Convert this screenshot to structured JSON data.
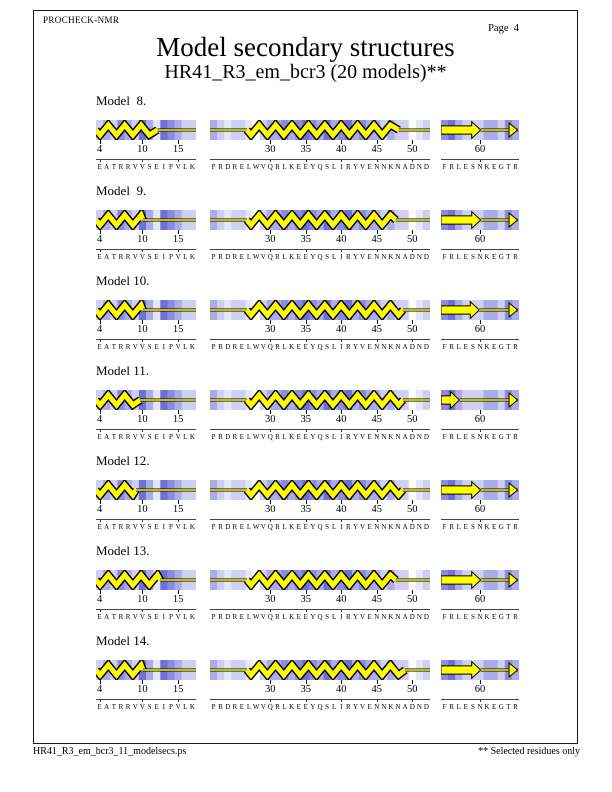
{
  "header": {
    "app": "PROCHECK-NMR",
    "page": "Page  4"
  },
  "title": "Model secondary structures",
  "subtitle": "HR41_R3_em_bcr3 (20 models)**",
  "footer": {
    "left": "HR41_R3_em_bcr3_11_modelsecs.ps",
    "right": "** Selected residues only"
  },
  "palette": {
    "helix_fill": "#ffff00",
    "outline": "#000000",
    "shades": [
      "#ffffff",
      "#e6e6fa",
      "#cfcff3",
      "#ababea",
      "#8b8be0",
      "#6f6fd6"
    ]
  },
  "chart_data": {
    "type": "secondary-structure-models",
    "xlabel": "residue number",
    "segments": [
      {
        "start": 4,
        "end": 18,
        "sequence": "EATRRVVSEIPVLK",
        "ticks": [
          4,
          10,
          15
        ],
        "shades": [
          2,
          3,
          2,
          4,
          3,
          2,
          5,
          3,
          1,
          5,
          4,
          3,
          2,
          2
        ]
      },
      {
        "start": 22,
        "end": 53,
        "sequence": "PRDRELWVQRLKEEYQSLIRYVENNKNADND",
        "ticks": [
          30,
          35,
          40,
          45,
          50
        ],
        "shades": [
          3,
          2,
          1,
          2,
          2,
          1,
          0,
          2,
          3,
          3,
          4,
          3,
          4,
          5,
          4,
          3,
          5,
          3,
          4,
          5,
          3,
          4,
          3,
          3,
          2,
          3,
          2,
          2,
          0,
          1,
          2
        ]
      },
      {
        "start": 55,
        "end": 66,
        "sequence": "FRLESNKEGTR",
        "ticks": [
          60
        ],
        "shades": [
          4,
          5,
          3,
          2,
          2,
          2,
          3,
          3,
          2,
          4,
          3
        ]
      }
    ],
    "models": [
      {
        "label": "Model  8.",
        "elements": [
          [
            {
              "type": "helix",
              "from": 4,
              "to": 12.6
            },
            {
              "type": "coil",
              "from": 12.6,
              "to": 18
            }
          ],
          [
            {
              "type": "coil",
              "from": 22,
              "to": 27.2
            },
            {
              "type": "helix",
              "from": 27.2,
              "to": 48.6
            },
            {
              "type": "coil",
              "from": 48.6,
              "to": 53
            }
          ],
          [
            {
              "type": "strand",
              "from": 55,
              "to": 60.6
            },
            {
              "type": "coil",
              "from": 60.6,
              "to": 65.8
            },
            {
              "type": "term-arrow",
              "at": 65.8
            }
          ]
        ]
      },
      {
        "label": "Model  9.",
        "elements": [
          [
            {
              "type": "helix",
              "from": 4,
              "to": 10.6
            },
            {
              "type": "coil",
              "from": 10.6,
              "to": 18
            }
          ],
          [
            {
              "type": "coil",
              "from": 22,
              "to": 27.2
            },
            {
              "type": "helix",
              "from": 27.2,
              "to": 48.2
            },
            {
              "type": "coil",
              "from": 48.2,
              "to": 53
            }
          ],
          [
            {
              "type": "strand",
              "from": 55,
              "to": 60.6
            },
            {
              "type": "coil",
              "from": 60.6,
              "to": 65.8
            },
            {
              "type": "term-arrow",
              "at": 65.8
            }
          ]
        ]
      },
      {
        "label": "Model 10.",
        "elements": [
          [
            {
              "type": "helix",
              "from": 4,
              "to": 10.6
            },
            {
              "type": "coil",
              "from": 10.6,
              "to": 18
            }
          ],
          [
            {
              "type": "coil",
              "from": 22,
              "to": 27.2
            },
            {
              "type": "helix",
              "from": 27.2,
              "to": 49.2
            },
            {
              "type": "coil",
              "from": 49.2,
              "to": 53
            }
          ],
          [
            {
              "type": "strand",
              "from": 55,
              "to": 60.4
            },
            {
              "type": "coil",
              "from": 60.4,
              "to": 65.8
            },
            {
              "type": "term-arrow",
              "at": 65.8
            }
          ]
        ]
      },
      {
        "label": "Model 11.",
        "elements": [
          [
            {
              "type": "helix",
              "from": 4,
              "to": 10.2
            },
            {
              "type": "coil",
              "from": 10.2,
              "to": 18
            }
          ],
          [
            {
              "type": "coil",
              "from": 22,
              "to": 27.2
            },
            {
              "type": "helix",
              "from": 27.2,
              "to": 49.2
            },
            {
              "type": "coil",
              "from": 49.2,
              "to": 53
            }
          ],
          [
            {
              "type": "strand",
              "from": 55,
              "to": 57.6
            },
            {
              "type": "coil",
              "from": 57.6,
              "to": 65.8
            },
            {
              "type": "term-arrow",
              "at": 65.8
            }
          ]
        ]
      },
      {
        "label": "Model 12.",
        "elements": [
          [
            {
              "type": "helix",
              "from": 4,
              "to": 9.6
            },
            {
              "type": "coil",
              "from": 9.6,
              "to": 18
            }
          ],
          [
            {
              "type": "coil",
              "from": 22,
              "to": 27.2
            },
            {
              "type": "helix",
              "from": 27.2,
              "to": 49.2
            },
            {
              "type": "coil",
              "from": 49.2,
              "to": 53
            }
          ],
          [
            {
              "type": "strand",
              "from": 55,
              "to": 60.6
            },
            {
              "type": "coil",
              "from": 60.6,
              "to": 65.8
            },
            {
              "type": "term-arrow",
              "at": 65.8
            }
          ]
        ]
      },
      {
        "label": "Model 13.",
        "elements": [
          [
            {
              "type": "helix",
              "from": 4,
              "to": 13
            },
            {
              "type": "coil",
              "from": 13,
              "to": 18
            }
          ],
          [
            {
              "type": "coil",
              "from": 22,
              "to": 27.2
            },
            {
              "type": "helix",
              "from": 27.2,
              "to": 48.2
            },
            {
              "type": "coil",
              "from": 48.2,
              "to": 53
            }
          ],
          [
            {
              "type": "strand",
              "from": 55,
              "to": 60.6
            },
            {
              "type": "coil",
              "from": 60.6,
              "to": 65.8
            },
            {
              "type": "term-arrow",
              "at": 65.8
            }
          ]
        ]
      },
      {
        "label": "Model 14.",
        "elements": [
          [
            {
              "type": "helix",
              "from": 4,
              "to": 10.6
            },
            {
              "type": "coil",
              "from": 10.6,
              "to": 18
            }
          ],
          [
            {
              "type": "coil",
              "from": 22,
              "to": 27.2
            },
            {
              "type": "helix",
              "from": 27.2,
              "to": 49.5
            },
            {
              "type": "coil",
              "from": 49.5,
              "to": 53
            }
          ],
          [
            {
              "type": "strand",
              "from": 55,
              "to": 60.6
            },
            {
              "type": "coil",
              "from": 60.6,
              "to": 65.8
            },
            {
              "type": "term-arrow",
              "at": 65.8
            }
          ]
        ]
      }
    ]
  }
}
